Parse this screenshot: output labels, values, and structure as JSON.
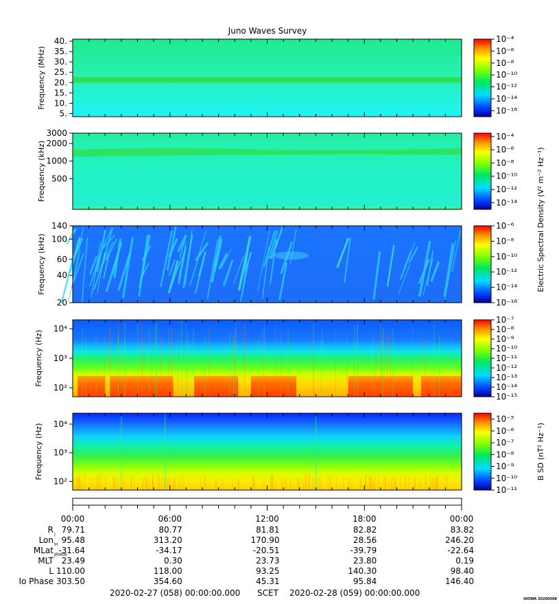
{
  "title": "Juno Waves Survey",
  "stamp": "UIOWA 20200308",
  "chart_data": [
    {
      "type": "heatmap",
      "id": "p1",
      "ylabel": "Frequency (MHz)",
      "yscale": "linear",
      "ylim": [
        3.5,
        41
      ],
      "yticks": [
        5,
        10,
        15,
        20,
        25,
        30,
        35,
        40
      ],
      "ytick_labels": [
        "5.",
        "10.",
        "15.",
        "20.",
        "25.",
        "30.",
        "35.",
        "40."
      ],
      "colorbar": {
        "scale": "log",
        "range": [
          -17,
          -4
        ],
        "exponents": [
          -4,
          -6,
          -8,
          -10,
          -12,
          -14,
          -16
        ],
        "label": ""
      }
    },
    {
      "type": "heatmap",
      "id": "p2",
      "ylabel": "Frequency (kHz)",
      "yscale": "log",
      "ylim": [
        150,
        3000
      ],
      "yticks": [
        500,
        1000,
        2000,
        3000
      ],
      "ytick_labels": [
        "500",
        "1000",
        "2000",
        "3000"
      ],
      "colorbar": {
        "scale": "log",
        "range": [
          -15,
          -3.5
        ],
        "exponents": [
          -4,
          -6,
          -8,
          -10,
          -12,
          -14
        ],
        "label": "Electric Spectral Density (V² m⁻² Hz⁻¹)"
      }
    },
    {
      "type": "heatmap",
      "id": "p3",
      "ylabel": "Frequency (kHz)",
      "yscale": "log",
      "ylim": [
        20,
        140
      ],
      "yticks": [
        20,
        40,
        60,
        100,
        140
      ],
      "ytick_labels": [
        "20",
        "40",
        "60",
        "100",
        "140"
      ],
      "colorbar": {
        "scale": "log",
        "range": [
          -16,
          -6
        ],
        "exponents": [
          -6,
          -8,
          -10,
          -12,
          -14,
          -16
        ],
        "label": ""
      }
    },
    {
      "type": "heatmap",
      "id": "p4",
      "ylabel": "Frequency (Hz)",
      "yscale": "log",
      "ylim": [
        50,
        20000
      ],
      "yticks": [
        100,
        1000,
        10000
      ],
      "ytick_labels": [
        "10²",
        "10³",
        "10⁴"
      ],
      "colorbar": {
        "scale": "log",
        "range": [
          -15,
          -7
        ],
        "exponents": [
          -7,
          -8,
          -9,
          -10,
          -11,
          -12,
          -13,
          -14,
          -15
        ],
        "label": ""
      }
    },
    {
      "type": "heatmap",
      "id": "p5",
      "ylabel": "Frequency (Hz)",
      "yscale": "log",
      "ylim": [
        50,
        24000
      ],
      "yticks": [
        100,
        1000,
        10000
      ],
      "ytick_labels": [
        "10²",
        "10³",
        "10⁴"
      ],
      "colorbar": {
        "scale": "log",
        "range": [
          -11,
          -4.5
        ],
        "exponents": [
          -5,
          -6,
          -7,
          -8,
          -9,
          -10,
          -11
        ],
        "label": "B SD (nT² Hz⁻¹)"
      }
    }
  ],
  "time_axis": {
    "ticks": [
      "00:00",
      "06:00",
      "12:00",
      "18:00",
      "00:00"
    ],
    "hours": [
      0,
      6,
      12,
      18,
      24
    ]
  },
  "ephemeris": [
    {
      "label": "R",
      "sub": "J",
      "values": [
        "79.71",
        "80.77",
        "81.81",
        "82.82",
        "83.82"
      ]
    },
    {
      "label": "Lon",
      "sub": "III",
      "values": [
        "95.48",
        "313.20",
        "170.90",
        "28.56",
        "246.20"
      ]
    },
    {
      "label": "MLat",
      "sub": "JRM09",
      "values": [
        "-31.64",
        "-34.17",
        "-20.51",
        "-39.79",
        "-22.64"
      ]
    },
    {
      "label": "MLT",
      "sub": "",
      "values": [
        "23.49",
        "0.30",
        "23.73",
        "23.80",
        "0.19"
      ]
    },
    {
      "label": "L",
      "sub": "",
      "values": [
        "110.00",
        "118.00",
        "93.25",
        "140.30",
        "98.40"
      ]
    },
    {
      "label": "Io Phase",
      "sub": "",
      "values": [
        "303.50",
        "354.60",
        "45.31",
        "95.84",
        "146.40"
      ]
    }
  ],
  "footer": {
    "start": "2020-02-27 (058) 00:00:00.000",
    "scet": "SCET",
    "end": "2020-02-28 (059) 00:00:00.000"
  }
}
